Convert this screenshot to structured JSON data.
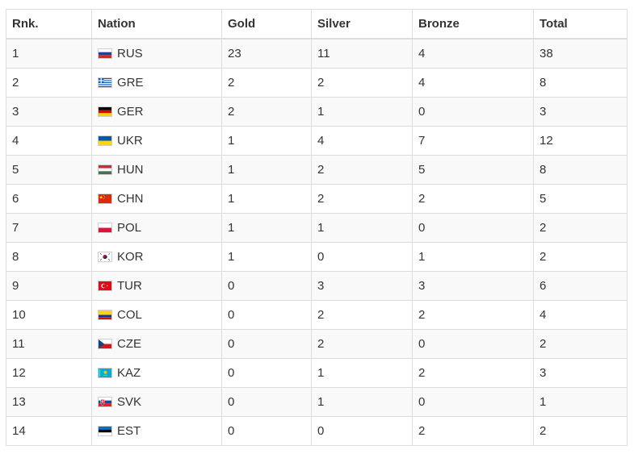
{
  "table": {
    "headers": [
      "Rnk.",
      "Nation",
      "Gold",
      "Silver",
      "Bronze",
      "Total"
    ],
    "rows": [
      {
        "rank": "1",
        "nation": "RUS",
        "gold": "23",
        "silver": "11",
        "bronze": "4",
        "total": "38",
        "flag_icon": "russia-flag-icon"
      },
      {
        "rank": "2",
        "nation": "GRE",
        "gold": "2",
        "silver": "2",
        "bronze": "4",
        "total": "8",
        "flag_icon": "greece-flag-icon"
      },
      {
        "rank": "3",
        "nation": "GER",
        "gold": "2",
        "silver": "1",
        "bronze": "0",
        "total": "3",
        "flag_icon": "germany-flag-icon"
      },
      {
        "rank": "4",
        "nation": "UKR",
        "gold": "1",
        "silver": "4",
        "bronze": "7",
        "total": "12",
        "flag_icon": "ukraine-flag-icon"
      },
      {
        "rank": "5",
        "nation": "HUN",
        "gold": "1",
        "silver": "2",
        "bronze": "5",
        "total": "8",
        "flag_icon": "hungary-flag-icon"
      },
      {
        "rank": "6",
        "nation": "CHN",
        "gold": "1",
        "silver": "2",
        "bronze": "2",
        "total": "5",
        "flag_icon": "china-flag-icon"
      },
      {
        "rank": "7",
        "nation": "POL",
        "gold": "1",
        "silver": "1",
        "bronze": "0",
        "total": "2",
        "flag_icon": "poland-flag-icon"
      },
      {
        "rank": "8",
        "nation": "KOR",
        "gold": "1",
        "silver": "0",
        "bronze": "1",
        "total": "2",
        "flag_icon": "south-korea-flag-icon"
      },
      {
        "rank": "9",
        "nation": "TUR",
        "gold": "0",
        "silver": "3",
        "bronze": "3",
        "total": "6",
        "flag_icon": "turkey-flag-icon"
      },
      {
        "rank": "10",
        "nation": "COL",
        "gold": "0",
        "silver": "2",
        "bronze": "2",
        "total": "4",
        "flag_icon": "colombia-flag-icon"
      },
      {
        "rank": "11",
        "nation": "CZE",
        "gold": "0",
        "silver": "2",
        "bronze": "0",
        "total": "2",
        "flag_icon": "czech-flag-icon"
      },
      {
        "rank": "12",
        "nation": "KAZ",
        "gold": "0",
        "silver": "1",
        "bronze": "2",
        "total": "3",
        "flag_icon": "kazakhstan-flag-icon"
      },
      {
        "rank": "13",
        "nation": "SVK",
        "gold": "0",
        "silver": "1",
        "bronze": "0",
        "total": "1",
        "flag_icon": "slovakia-flag-icon"
      },
      {
        "rank": "14",
        "nation": "EST",
        "gold": "0",
        "silver": "0",
        "bronze": "2",
        "total": "2",
        "flag_icon": "estonia-flag-icon"
      }
    ]
  }
}
